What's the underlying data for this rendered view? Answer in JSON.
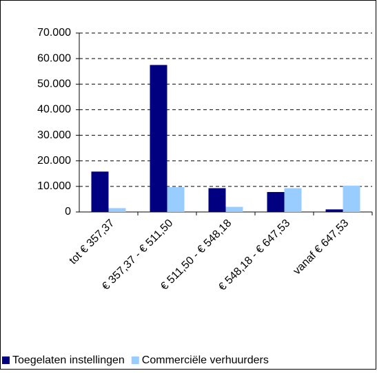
{
  "chart_data": {
    "type": "bar",
    "categories": [
      "tot € 357,37",
      "€ 357,37 - € 511,50",
      "€ 511,50 - € 548,18",
      "€ 548,18 - € 647,53",
      "vanaf € 647,53"
    ],
    "series": [
      {
        "name": "Toegelaten instellingen",
        "color": "#000080",
        "values": [
          15800,
          57500,
          9300,
          7800,
          1000
        ]
      },
      {
        "name": "Commerciële verhuurders",
        "color": "#99ccff",
        "values": [
          1500,
          9700,
          2000,
          9300,
          10300
        ]
      }
    ],
    "ylim": [
      0,
      70000
    ],
    "yticks": [
      0,
      {
        "value": 10000,
        "label": "10.000"
      },
      {
        "value": 20000,
        "label": "20.000"
      },
      {
        "value": 30000,
        "label": "30.000"
      },
      {
        "value": 40000,
        "label": "40.000"
      },
      {
        "value": 50000,
        "label": "50.000"
      },
      {
        "value": 60000,
        "label": "60.000"
      },
      {
        "value": 70000,
        "label": "70.000"
      }
    ],
    "grid": true,
    "legend": "bottom"
  }
}
